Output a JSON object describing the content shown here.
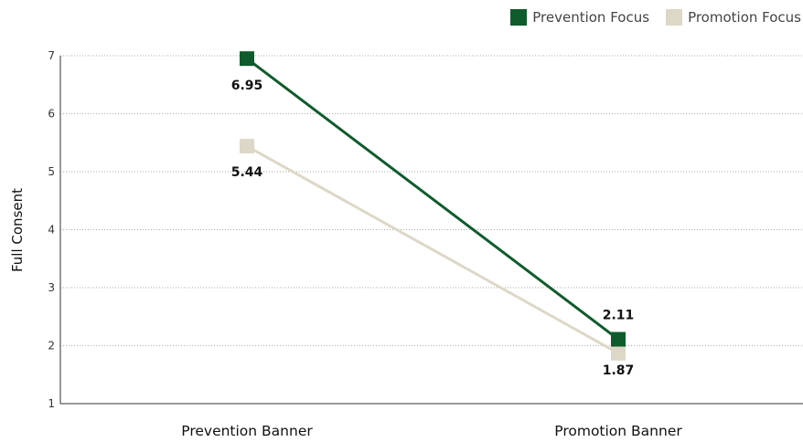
{
  "chart_data": {
    "type": "line",
    "categories": [
      "Prevention Banner",
      "Promotion Banner"
    ],
    "series": [
      {
        "name": "Prevention Focus",
        "values": [
          6.95,
          2.11
        ],
        "color": "#0f5b2c"
      },
      {
        "name": "Promotion Focus",
        "values": [
          5.44,
          1.87
        ],
        "color": "#ddd7c7"
      }
    ],
    "ylabel": "Full Consent",
    "ylim": [
      1,
      7
    ],
    "yticks": [
      1,
      2,
      3,
      4,
      5,
      6,
      7
    ],
    "grid": true,
    "legend_position": "top-right"
  }
}
